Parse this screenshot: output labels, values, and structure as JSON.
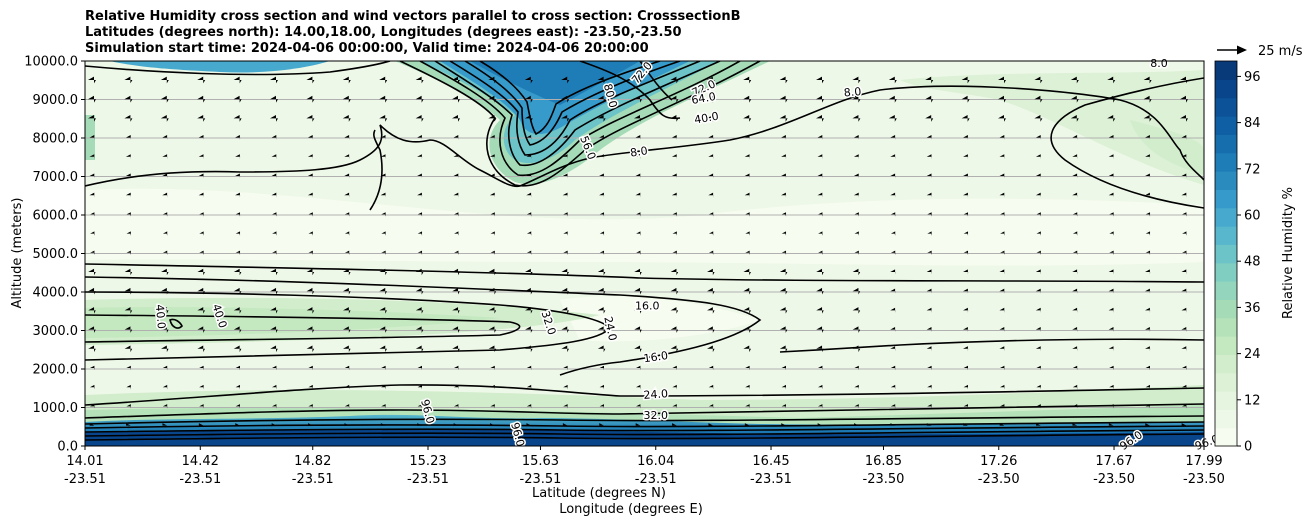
{
  "chart_data": {
    "type": "contour",
    "title_lines": [
      "Relative Humidity cross section and wind vectors parallel to cross section: CrosssectionB",
      "Latitudes (degrees north): 14.00,18.00, Longitudes (degrees east): -23.50,-23.50",
      "Simulation start time: 2024-04-06 00:00:00, Valid time: 2024-04-06 20:00:00"
    ],
    "xlabel_1": "Latitude (degrees N)",
    "xlabel_2": "Longitude (degrees E)",
    "ylabel": "Altitude (meters)",
    "x_ticks": [
      {
        "lat": 14.01,
        "lat_label": "14.01",
        "lon_label": "-23.51"
      },
      {
        "lat": 14.42,
        "lat_label": "14.42",
        "lon_label": "-23.51"
      },
      {
        "lat": 14.82,
        "lat_label": "14.82",
        "lon_label": "-23.51"
      },
      {
        "lat": 15.23,
        "lat_label": "15.23",
        "lon_label": "-23.51"
      },
      {
        "lat": 15.63,
        "lat_label": "15.63",
        "lon_label": "-23.51"
      },
      {
        "lat": 16.04,
        "lat_label": "16.04",
        "lon_label": "-23.51"
      },
      {
        "lat": 16.45,
        "lat_label": "16.45",
        "lon_label": "-23.51"
      },
      {
        "lat": 16.85,
        "lat_label": "16.85",
        "lon_label": "-23.50"
      },
      {
        "lat": 17.26,
        "lat_label": "17.26",
        "lon_label": "-23.50"
      },
      {
        "lat": 17.67,
        "lat_label": "17.67",
        "lon_label": "-23.50"
      },
      {
        "lat": 17.99,
        "lat_label": "17.99",
        "lon_label": "-23.50"
      }
    ],
    "xlim": [
      14.01,
      17.99
    ],
    "y_ticks": [
      {
        "value": 0,
        "label": "0.0"
      },
      {
        "value": 1000,
        "label": "1000.0"
      },
      {
        "value": 2000,
        "label": "2000.0"
      },
      {
        "value": 3000,
        "label": "3000.0"
      },
      {
        "value": 4000,
        "label": "4000.0"
      },
      {
        "value": 5000,
        "label": "5000.0"
      },
      {
        "value": 6000,
        "label": "6000.0"
      },
      {
        "value": 7000,
        "label": "7000.0"
      },
      {
        "value": 8000,
        "label": "8000.0"
      },
      {
        "value": 9000,
        "label": "9000.0"
      },
      {
        "value": 10000,
        "label": "10000.0"
      }
    ],
    "ylim": [
      0,
      10000
    ],
    "grid": "horizontal",
    "colorbar": {
      "label": "Relative Humidity %",
      "range": [
        0,
        100
      ],
      "ticks": [
        {
          "value": 0,
          "label": "0"
        },
        {
          "value": 12,
          "label": "12"
        },
        {
          "value": 24,
          "label": "24"
        },
        {
          "value": 36,
          "label": "36"
        },
        {
          "value": 48,
          "label": "48"
        },
        {
          "value": 60,
          "label": "60"
        },
        {
          "value": 72,
          "label": "72"
        },
        {
          "value": 84,
          "label": "84"
        },
        {
          "value": 96,
          "label": "96"
        }
      ],
      "colors": [
        "#f7fcf0",
        "#eef8e8",
        "#e6f5e0",
        "#dcf1d6",
        "#d1edcb",
        "#c4e8c0",
        "#b5e2b9",
        "#a5dcb7",
        "#93d5bd",
        "#80cdc1",
        "#6cc3c8",
        "#58b7cc",
        "#46a9cd",
        "#369acb",
        "#2a8bbe",
        "#1e7cb6",
        "#166ead",
        "#0f5fa4",
        "#0b5298",
        "#08458b",
        "#083a7a"
      ]
    },
    "quiver_key": {
      "label": "25 m/s",
      "speed": 25
    },
    "contour_labels": [
      {
        "text": "8.0",
        "lat": 16.74,
        "alt": 9200,
        "rot": -5
      },
      {
        "text": "8.0",
        "lat": 15.98,
        "alt": 7650,
        "rot": -8
      },
      {
        "text": "16.0",
        "lat": 16.01,
        "alt": 3650,
        "rot": 0
      },
      {
        "text": "16.0",
        "lat": 16.04,
        "alt": 2320,
        "rot": -8
      },
      {
        "text": "24.0",
        "lat": 16.04,
        "alt": 1350,
        "rot": -4
      },
      {
        "text": "24.0",
        "lat": 15.88,
        "alt": 3050,
        "rot": 78
      },
      {
        "text": "32.0",
        "lat": 16.04,
        "alt": 800,
        "rot": 0
      },
      {
        "text": "32.0",
        "lat": 15.66,
        "alt": 3200,
        "rot": 72
      },
      {
        "text": "40.0",
        "lat": 14.28,
        "alt": 3360,
        "rot": 85
      },
      {
        "text": "40.0",
        "lat": 14.49,
        "alt": 3380,
        "rot": 72
      },
      {
        "text": "72.0",
        "lat": 15.99,
        "alt": 9700,
        "rot": -50
      },
      {
        "text": "72.0",
        "lat": 16.21,
        "alt": 9300,
        "rot": -25
      },
      {
        "text": "64.0",
        "lat": 16.21,
        "alt": 9040,
        "rot": -10
      },
      {
        "text": "56.0",
        "lat": 15.8,
        "alt": 7750,
        "rot": 68
      },
      {
        "text": "40.0",
        "lat": 16.22,
        "alt": 8530,
        "rot": -10
      },
      {
        "text": "80.0",
        "lat": 15.88,
        "alt": 9100,
        "rot": 75
      },
      {
        "text": "96.0",
        "lat": 17.73,
        "alt": 150,
        "rot": -35
      },
      {
        "text": "96.0",
        "lat": 18.0,
        "alt": 100,
        "rot": -20
      },
      {
        "text": "96.0",
        "lat": 15.23,
        "alt": 900,
        "rot": 75
      },
      {
        "text": "96.0",
        "lat": 15.55,
        "alt": 300,
        "rot": 75
      },
      {
        "text": "8.0",
        "lat": 17.83,
        "alt": 9950,
        "rot": 0
      }
    ]
  }
}
